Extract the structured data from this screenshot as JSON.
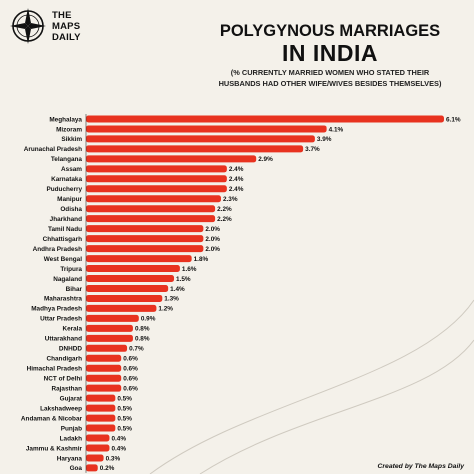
{
  "brand": {
    "line1": "THE",
    "line2": "MAPS",
    "line3": "DAILY",
    "logo_icon": "compass-rose-icon"
  },
  "colors": {
    "bar": "#e8321f",
    "background": "#f4f1ea",
    "text": "#111111"
  },
  "credit": "Created by The Maps Daily",
  "chart_data": {
    "type": "bar",
    "orientation": "horizontal",
    "title_line1": "POLYGYNOUS MARRIAGES",
    "title_line2": "IN INDIA",
    "subtitle": "(% CURRENTLY MARRIED WOMEN WHO STATED THEIR HUSBANDS HAD OTHER WIFE/WIVES BESIDES THEMSELVES)",
    "value_suffix": "%",
    "categories": [
      "Meghalaya",
      "Mizoram",
      "Sikkim",
      "Arunachal Pradesh",
      "Telangana",
      "Assam",
      "Karnataka",
      "Puducherry",
      "Manipur",
      "Odisha",
      "Jharkhand",
      "Tamil Nadu",
      "Chhattisgarh",
      "Andhra Pradesh",
      "West Bengal",
      "Tripura",
      "Nagaland",
      "Bihar",
      "Maharashtra",
      "Madhya Pradesh",
      "Uttar Pradesh",
      "Kerala",
      "Uttarakhand",
      "DNHDD",
      "Chandigarh",
      "Himachal Pradesh",
      "NCT of Delhi",
      "Rajasthan",
      "Gujarat",
      "Lakshadweep",
      "Andaman & Nicobar",
      "Punjab",
      "Ladakh",
      "Jammu & Kashmir",
      "Haryana",
      "Goa"
    ],
    "values": [
      6.1,
      4.1,
      3.9,
      3.7,
      2.9,
      2.4,
      2.4,
      2.4,
      2.3,
      2.2,
      2.2,
      2.0,
      2.0,
      2.0,
      1.8,
      1.6,
      1.5,
      1.4,
      1.3,
      1.2,
      0.9,
      0.8,
      0.8,
      0.7,
      0.6,
      0.6,
      0.6,
      0.6,
      0.5,
      0.5,
      0.5,
      0.5,
      0.4,
      0.4,
      0.3,
      0.2
    ],
    "xlim": [
      0,
      6.1
    ],
    "grid": false,
    "legend": "none"
  }
}
